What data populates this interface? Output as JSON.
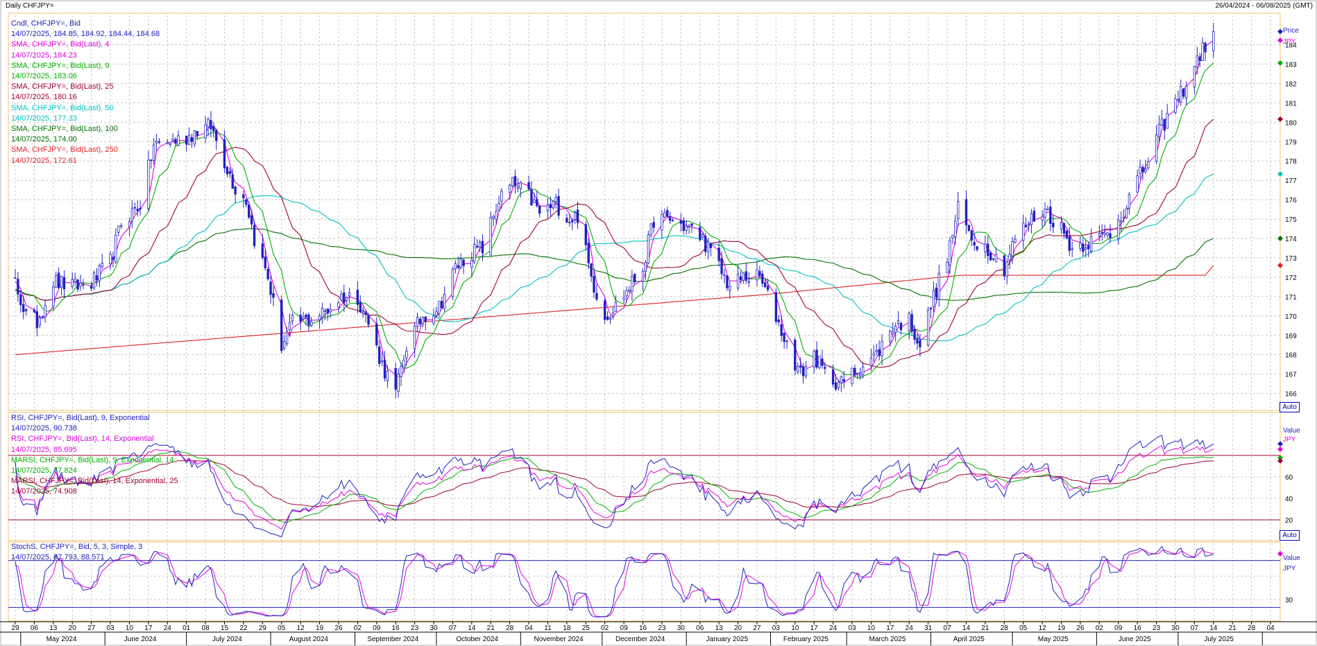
{
  "header": {
    "title": "Daily CHFJPY=",
    "range": "26/04/2024 - 06/08/2025 (GMT)"
  },
  "panes": {
    "price": {
      "unit_top": "Price",
      "unit_bottom": "JPY",
      "auto": "Auto",
      "legend": [
        {
          "name": "Cndl, CHFJPY=, Bid",
          "value": "14/07/2025, 184.85, 184.92, 184.44, 184.68",
          "color": "#2020c0"
        },
        {
          "name": "SMA, CHFJPY=, Bid(Last),  4",
          "value": "14/07/2025, 184.23",
          "color": "#e000e0"
        },
        {
          "name": "SMA, CHFJPY=, Bid(Last),  9",
          "value": "14/07/2025, 183.06",
          "color": "#00b000"
        },
        {
          "name": "SMA, CHFJPY=, Bid(Last),  25",
          "value": "14/07/2025, 180.16",
          "color": "#a00030"
        },
        {
          "name": "SMA, CHFJPY=, Bid(Last),  50",
          "value": "14/07/2025, 177.33",
          "color": "#00c0c0"
        },
        {
          "name": "SMA, CHFJPY=, Bid(Last),  100",
          "value": "14/07/2025, 174.00",
          "color": "#007000"
        },
        {
          "name": "SMA, CHFJPY=, Bid(Last),  250",
          "value": "14/07/2025, 172.61",
          "color": "#e02020"
        }
      ]
    },
    "rsi": {
      "unit_top": "Value",
      "unit_bottom": "JPY",
      "auto": "Auto",
      "legend": [
        {
          "name": "RSI, CHFJPY=, Bid(Last),  9, Exponential",
          "value": "14/07/2025, 90.738",
          "color": "#2020c0"
        },
        {
          "name": "RSI, CHFJPY=, Bid(Last),  14, Exponential",
          "value": "14/07/2025, 85.695",
          "color": "#e000e0"
        },
        {
          "name": "MARSI, CHFJPY=, Bid(Last),  9, Exponential, 14",
          "value": "14/07/2025, 77.824",
          "color": "#00b000"
        },
        {
          "name": "MARSI, CHFJPY=, Bid(Last),  14, Exponential, 25",
          "value": "14/07/2025, 74.908",
          "color": "#a00030"
        }
      ]
    },
    "stoch": {
      "unit_top": "Value",
      "unit_bottom": "JPY",
      "legend": [
        {
          "name": "StochS, CHFJPY=, Bid,  5, 3, Simple, 3",
          "value": "14/07/2025, 87.793, 88.571",
          "color": "#2020c0"
        }
      ]
    }
  },
  "chart_data": [
    {
      "type": "candlestick",
      "title": "Daily CHFJPY=",
      "ylabel": "Price JPY",
      "ylim": [
        165.2,
        184.8
      ],
      "y_ticks": [
        166,
        167,
        168,
        169,
        170,
        171,
        172,
        173,
        174,
        175,
        176,
        177,
        178,
        179,
        180,
        181,
        182,
        183,
        184
      ],
      "close_anchors": [
        [
          "2024-04-29",
          171.7
        ],
        [
          "2024-05-03",
          170.0
        ],
        [
          "2024-05-07",
          169.7
        ],
        [
          "2024-05-13",
          171.8
        ],
        [
          "2024-05-20",
          171.5
        ],
        [
          "2024-05-27",
          171.7
        ],
        [
          "2024-06-03",
          172.8
        ],
        [
          "2024-06-07",
          174.8
        ],
        [
          "2024-06-14",
          175.8
        ],
        [
          "2024-06-19",
          178.8
        ],
        [
          "2024-06-25",
          179.0
        ],
        [
          "2024-07-01",
          179.2
        ],
        [
          "2024-07-05",
          179.6
        ],
        [
          "2024-07-10",
          179.8
        ],
        [
          "2024-07-15",
          178.0
        ],
        [
          "2024-07-19",
          176.6
        ],
        [
          "2024-07-23",
          176.0
        ],
        [
          "2024-07-26",
          174.0
        ],
        [
          "2024-07-31",
          172.0
        ],
        [
          "2024-08-05",
          168.5
        ],
        [
          "2024-08-09",
          169.6
        ],
        [
          "2024-08-15",
          169.8
        ],
        [
          "2024-08-21",
          170.2
        ],
        [
          "2024-08-27",
          171.0
        ],
        [
          "2024-09-02",
          171.0
        ],
        [
          "2024-09-06",
          169.6
        ],
        [
          "2024-09-11",
          167.5
        ],
        [
          "2024-09-16",
          166.0
        ],
        [
          "2024-09-20",
          168.5
        ],
        [
          "2024-09-26",
          170.0
        ],
        [
          "2024-10-02",
          170.5
        ],
        [
          "2024-10-08",
          172.5
        ],
        [
          "2024-10-14",
          173.3
        ],
        [
          "2024-10-18",
          173.5
        ],
        [
          "2024-10-24",
          176.0
        ],
        [
          "2024-10-29",
          176.8
        ],
        [
          "2024-11-04",
          176.2
        ],
        [
          "2024-11-08",
          175.3
        ],
        [
          "2024-11-14",
          175.8
        ],
        [
          "2024-11-19",
          175.0
        ],
        [
          "2024-11-22",
          175.2
        ],
        [
          "2024-11-27",
          172.0
        ],
        [
          "2024-12-02",
          170.0
        ],
        [
          "2024-12-06",
          170.5
        ],
        [
          "2024-12-11",
          171.5
        ],
        [
          "2024-12-16",
          172.5
        ],
        [
          "2024-12-20",
          175.0
        ],
        [
          "2024-12-26",
          175.0
        ],
        [
          "2025-01-02",
          174.5
        ],
        [
          "2025-01-07",
          174.0
        ],
        [
          "2025-01-13",
          172.5
        ],
        [
          "2025-01-17",
          171.5
        ],
        [
          "2025-01-22",
          172.0
        ],
        [
          "2025-01-28",
          172.0
        ],
        [
          "2025-02-03",
          170.0
        ],
        [
          "2025-02-07",
          168.5
        ],
        [
          "2025-02-12",
          167.0
        ],
        [
          "2025-02-17",
          168.0
        ],
        [
          "2025-02-21",
          167.0
        ],
        [
          "2025-02-27",
          166.5
        ],
        [
          "2025-03-03",
          167.0
        ],
        [
          "2025-03-07",
          167.5
        ],
        [
          "2025-03-12",
          168.0
        ],
        [
          "2025-03-18",
          169.5
        ],
        [
          "2025-03-24",
          169.8
        ],
        [
          "2025-03-28",
          168.5
        ],
        [
          "2025-04-02",
          171.0
        ],
        [
          "2025-04-07",
          173.0
        ],
        [
          "2025-04-11",
          175.5
        ],
        [
          "2025-04-16",
          174.0
        ],
        [
          "2025-04-22",
          173.5
        ],
        [
          "2025-04-28",
          172.5
        ],
        [
          "2025-05-02",
          174.0
        ],
        [
          "2025-05-08",
          175.0
        ],
        [
          "2025-05-13",
          175.5
        ],
        [
          "2025-05-19",
          174.5
        ],
        [
          "2025-05-23",
          173.5
        ],
        [
          "2025-05-28",
          173.8
        ],
        [
          "2025-06-02",
          174.0
        ],
        [
          "2025-06-06",
          174.3
        ],
        [
          "2025-06-11",
          175.5
        ],
        [
          "2025-06-16",
          177.0
        ],
        [
          "2025-06-20",
          178.0
        ],
        [
          "2025-06-24",
          179.5
        ],
        [
          "2025-06-30",
          181.0
        ],
        [
          "2025-07-04",
          182.0
        ],
        [
          "2025-07-09",
          183.5
        ],
        [
          "2025-07-14",
          184.68
        ]
      ],
      "last_values": {
        "SMA 4": 184.23,
        "SMA 9": 183.06,
        "SMA 25": 180.16,
        "SMA 50": 177.33,
        "SMA 100": 174.0,
        "SMA 250": 172.61
      }
    },
    {
      "type": "line",
      "title": "RSI",
      "ylim": [
        0,
        100
      ],
      "y_ticks": [
        20,
        40,
        60
      ],
      "reference_lines": [
        20,
        80
      ],
      "last_values": {
        "RSI 9": 90.738,
        "RSI 14": 85.695,
        "MARSI 9": 77.824,
        "MARSI 14": 74.908
      }
    },
    {
      "type": "line",
      "title": "StochS",
      "ylim": [
        0,
        100
      ],
      "y_ticks": [
        30
      ],
      "reference_lines": [
        20,
        80
      ],
      "last_values": {
        "%K": 87.793,
        "%D": 88.571
      }
    }
  ],
  "x_axis": {
    "day_ticks": [
      {
        "label": "29",
        "date": "2024-04-29"
      },
      {
        "label": "06",
        "date": "2024-05-06"
      },
      {
        "label": "13",
        "date": "2024-05-13"
      },
      {
        "label": "20",
        "date": "2024-05-20"
      },
      {
        "label": "27",
        "date": "2024-05-27"
      },
      {
        "label": "03",
        "date": "2024-06-03"
      },
      {
        "label": "10",
        "date": "2024-06-10"
      },
      {
        "label": "17",
        "date": "2024-06-17"
      },
      {
        "label": "24",
        "date": "2024-06-24"
      },
      {
        "label": "01",
        "date": "2024-07-01"
      },
      {
        "label": "08",
        "date": "2024-07-08"
      },
      {
        "label": "15",
        "date": "2024-07-15"
      },
      {
        "label": "22",
        "date": "2024-07-22"
      },
      {
        "label": "29",
        "date": "2024-07-29"
      },
      {
        "label": "05",
        "date": "2024-08-05"
      },
      {
        "label": "12",
        "date": "2024-08-12"
      },
      {
        "label": "19",
        "date": "2024-08-19"
      },
      {
        "label": "26",
        "date": "2024-08-26"
      },
      {
        "label": "02",
        "date": "2024-09-02"
      },
      {
        "label": "09",
        "date": "2024-09-09"
      },
      {
        "label": "16",
        "date": "2024-09-16"
      },
      {
        "label": "23",
        "date": "2024-09-23"
      },
      {
        "label": "30",
        "date": "2024-09-30"
      },
      {
        "label": "07",
        "date": "2024-10-07"
      },
      {
        "label": "14",
        "date": "2024-10-14"
      },
      {
        "label": "21",
        "date": "2024-10-21"
      },
      {
        "label": "28",
        "date": "2024-10-28"
      },
      {
        "label": "04",
        "date": "2024-11-04"
      },
      {
        "label": "11",
        "date": "2024-11-11"
      },
      {
        "label": "18",
        "date": "2024-11-18"
      },
      {
        "label": "25",
        "date": "2024-11-25"
      },
      {
        "label": "02",
        "date": "2024-12-02"
      },
      {
        "label": "09",
        "date": "2024-12-09"
      },
      {
        "label": "16",
        "date": "2024-12-16"
      },
      {
        "label": "23",
        "date": "2024-12-23"
      },
      {
        "label": "30",
        "date": "2024-12-30"
      },
      {
        "label": "06",
        "date": "2025-01-06"
      },
      {
        "label": "13",
        "date": "2025-01-13"
      },
      {
        "label": "20",
        "date": "2025-01-20"
      },
      {
        "label": "27",
        "date": "2025-01-27"
      },
      {
        "label": "03",
        "date": "2025-02-03"
      },
      {
        "label": "10",
        "date": "2025-02-10"
      },
      {
        "label": "17",
        "date": "2025-02-17"
      },
      {
        "label": "24",
        "date": "2025-02-24"
      },
      {
        "label": "03",
        "date": "2025-03-03"
      },
      {
        "label": "10",
        "date": "2025-03-10"
      },
      {
        "label": "17",
        "date": "2025-03-17"
      },
      {
        "label": "24",
        "date": "2025-03-24"
      },
      {
        "label": "31",
        "date": "2025-03-31"
      },
      {
        "label": "07",
        "date": "2025-04-07"
      },
      {
        "label": "14",
        "date": "2025-04-14"
      },
      {
        "label": "21",
        "date": "2025-04-21"
      },
      {
        "label": "28",
        "date": "2025-04-28"
      },
      {
        "label": "05",
        "date": "2025-05-05"
      },
      {
        "label": "12",
        "date": "2025-05-12"
      },
      {
        "label": "19",
        "date": "2025-05-19"
      },
      {
        "label": "26",
        "date": "2025-05-26"
      },
      {
        "label": "02",
        "date": "2025-06-02"
      },
      {
        "label": "09",
        "date": "2025-06-09"
      },
      {
        "label": "16",
        "date": "2025-06-16"
      },
      {
        "label": "23",
        "date": "2025-06-23"
      },
      {
        "label": "30",
        "date": "2025-06-30"
      },
      {
        "label": "07",
        "date": "2025-07-07"
      },
      {
        "label": "14",
        "date": "2025-07-14"
      },
      {
        "label": "21",
        "date": "2025-07-21"
      },
      {
        "label": "28",
        "date": "2025-07-28"
      },
      {
        "label": "04",
        "date": "2025-08-04"
      }
    ],
    "month_labels": [
      {
        "label": "May 2024",
        "date": "2024-05-16"
      },
      {
        "label": "June 2024",
        "date": "2024-06-14"
      },
      {
        "label": "July 2024",
        "date": "2024-07-16"
      },
      {
        "label": "August 2024",
        "date": "2024-08-15"
      },
      {
        "label": "September 2024",
        "date": "2024-09-15"
      },
      {
        "label": "October 2024",
        "date": "2024-10-16"
      },
      {
        "label": "November 2024",
        "date": "2024-11-15"
      },
      {
        "label": "December 2024",
        "date": "2024-12-15"
      },
      {
        "label": "January 2025",
        "date": "2025-01-16"
      },
      {
        "label": "February 2025",
        "date": "2025-02-14"
      },
      {
        "label": "March 2025",
        "date": "2025-03-16"
      },
      {
        "label": "April 2025",
        "date": "2025-04-15"
      },
      {
        "label": "May 2025",
        "date": "2025-05-16"
      },
      {
        "label": "June 2025",
        "date": "2025-06-15"
      },
      {
        "label": "July 2025",
        "date": "2025-07-16"
      }
    ],
    "month_boundaries": [
      "2024-05-01",
      "2024-06-01",
      "2024-07-01",
      "2024-08-01",
      "2024-09-01",
      "2024-10-01",
      "2024-11-01",
      "2024-12-01",
      "2025-01-01",
      "2025-02-01",
      "2025-03-01",
      "2025-04-01",
      "2025-05-01",
      "2025-06-01",
      "2025-07-01",
      "2025-08-01"
    ]
  }
}
